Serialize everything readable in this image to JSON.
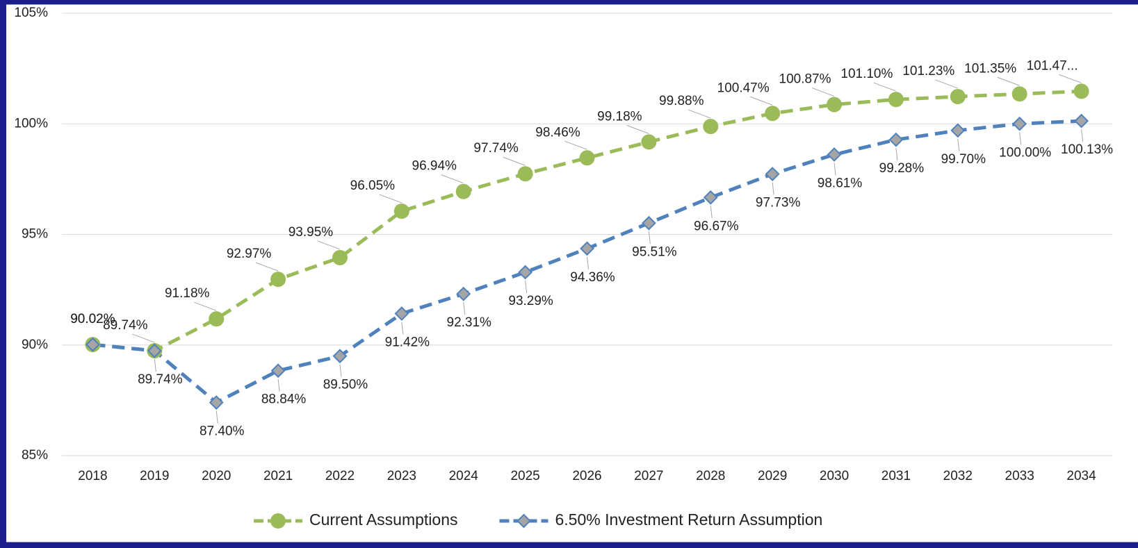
{
  "chart_data": {
    "type": "line",
    "categories": [
      "2018",
      "2019",
      "2020",
      "2021",
      "2022",
      "2023",
      "2024",
      "2025",
      "2026",
      "2027",
      "2028",
      "2029",
      "2030",
      "2031",
      "2032",
      "2033",
      "2034"
    ],
    "series": [
      {
        "name": "Current Assumptions",
        "color": "#9bbb59",
        "marker": "circle",
        "values": [
          90.02,
          89.74,
          91.18,
          92.97,
          93.95,
          96.05,
          96.94,
          97.74,
          98.46,
          99.18,
          99.88,
          100.47,
          100.87,
          101.1,
          101.23,
          101.35,
          101.47
        ],
        "value_labels": [
          "90.02%",
          "89.74%",
          "91.18%",
          "92.97%",
          "93.95%",
          "96.05%",
          "96.94%",
          "97.74%",
          "98.46%",
          "99.18%",
          "99.88%",
          "100.47%",
          "100.87%",
          "101.10%",
          "101.23%",
          "101.35%",
          "101.47..."
        ]
      },
      {
        "name": "6.50% Investment Return Assumption",
        "color": "#4f81bd",
        "marker": "diamond",
        "values": [
          90.02,
          89.74,
          87.4,
          88.84,
          89.5,
          91.42,
          92.31,
          93.29,
          94.36,
          95.51,
          96.67,
          97.73,
          98.61,
          99.28,
          99.7,
          100.0,
          100.13
        ],
        "value_labels": [
          "90.02%",
          "89.74%",
          "87.40%",
          "88.84%",
          "89.50%",
          "91.42%",
          "92.31%",
          "93.29%",
          "94.36%",
          "95.51%",
          "96.67%",
          "97.73%",
          "98.61%",
          "99.28%",
          "99.70%",
          "100.00%",
          "100.13%"
        ]
      }
    ],
    "ylim": [
      85,
      105
    ],
    "yticks": [
      {
        "value": 85,
        "label": "85%"
      },
      {
        "value": 90,
        "label": "90%"
      },
      {
        "value": 95,
        "label": "95%"
      },
      {
        "value": 100,
        "label": "100%"
      },
      {
        "value": 105,
        "label": "105%"
      }
    ],
    "grid": true,
    "legend": "bottom"
  }
}
